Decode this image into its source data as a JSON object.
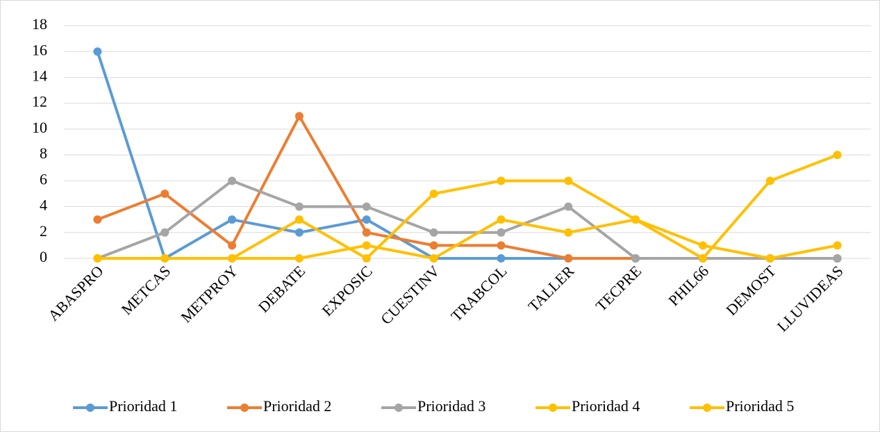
{
  "chart_data": {
    "type": "line",
    "categories": [
      "ABASPRO",
      "METCAS",
      "METPROY",
      "DEBATE",
      "EXPOSIC",
      "CUESTINV",
      "TRABCOL",
      "TALLER",
      "TECPRE",
      "PHIL66",
      "DEMOST",
      "LLUVIDEAS"
    ],
    "series": [
      {
        "name": "Prioridad 1",
        "color": "#5b9bd5",
        "values": [
          16,
          0,
          3,
          2,
          3,
          0,
          0,
          0,
          0,
          0,
          0,
          0
        ]
      },
      {
        "name": "Prioridad 2",
        "color": "#ed7d31",
        "values": [
          3,
          5,
          1,
          11,
          2,
          1,
          1,
          0,
          0,
          0,
          0,
          0
        ]
      },
      {
        "name": "Prioridad 3",
        "color": "#a5a5a5",
        "values": [
          0,
          2,
          6,
          4,
          4,
          2,
          2,
          4,
          0,
          0,
          0,
          0
        ]
      },
      {
        "name": "Prioridad 4",
        "color": "#ffc000",
        "values": [
          0,
          0,
          0,
          0,
          1,
          0,
          3,
          2,
          3,
          1,
          0,
          1
        ]
      },
      {
        "name": "Prioridad 5",
        "color": "#ffc000",
        "values": [
          0,
          0,
          0,
          3,
          0,
          5,
          6,
          6,
          3,
          0,
          6,
          8
        ]
      }
    ],
    "ylim": [
      0,
      18
    ],
    "yticks": [
      0,
      2,
      4,
      6,
      8,
      10,
      12,
      14,
      16,
      18
    ],
    "grid": true,
    "legend": "bottom"
  }
}
